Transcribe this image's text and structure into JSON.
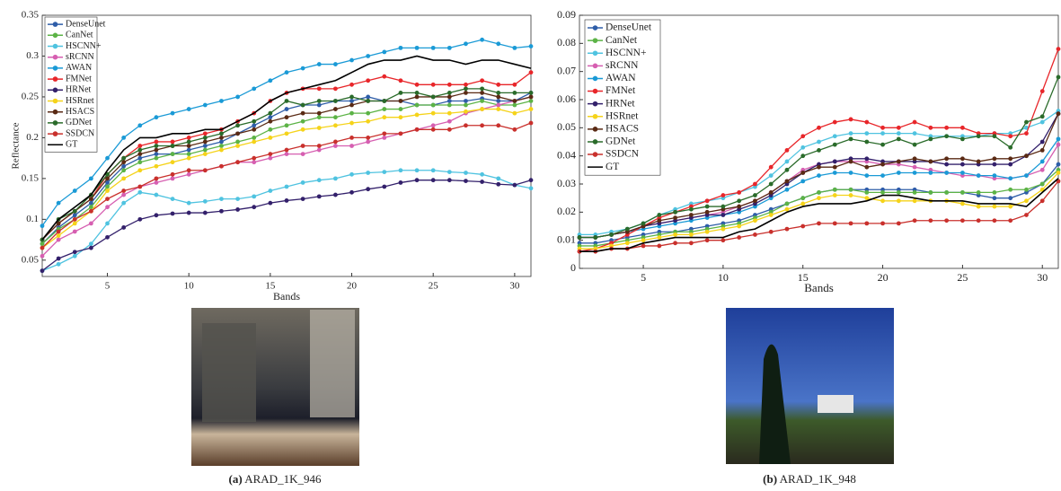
{
  "chart_data": [
    {
      "type": "line",
      "ylabel": "Reflectance",
      "xlabel": "Bands",
      "label": "(a)",
      "caption": "ARAD_1K_946",
      "x": [
        1,
        2,
        3,
        4,
        5,
        6,
        7,
        8,
        9,
        10,
        11,
        12,
        13,
        14,
        15,
        16,
        17,
        18,
        19,
        20,
        21,
        22,
        23,
        24,
        25,
        26,
        27,
        28,
        29,
        30,
        31
      ],
      "xlim": [
        1,
        31
      ],
      "xticks": [
        5,
        10,
        15,
        20,
        25,
        30
      ],
      "ylim": [
        0.03,
        0.35
      ],
      "yticks": [
        0.05,
        0.1,
        0.15,
        0.2,
        0.25,
        0.3,
        0.35
      ],
      "legend": "upper left",
      "series": [
        {
          "name": "DenseUnet",
          "color": "#2e5da8",
          "values": [
            0.07,
            0.09,
            0.105,
            0.12,
            0.145,
            0.165,
            0.175,
            0.18,
            0.18,
            0.185,
            0.19,
            0.195,
            0.205,
            0.215,
            0.225,
            0.235,
            0.24,
            0.24,
            0.245,
            0.245,
            0.25,
            0.245,
            0.245,
            0.24,
            0.24,
            0.245,
            0.245,
            0.248,
            0.245,
            0.245,
            0.255
          ]
        },
        {
          "name": "CanNet",
          "color": "#5cb346",
          "values": [
            0.07,
            0.088,
            0.1,
            0.115,
            0.14,
            0.16,
            0.17,
            0.175,
            0.18,
            0.18,
            0.185,
            0.19,
            0.195,
            0.2,
            0.21,
            0.215,
            0.22,
            0.225,
            0.225,
            0.23,
            0.23,
            0.235,
            0.235,
            0.24,
            0.24,
            0.24,
            0.24,
            0.245,
            0.24,
            0.24,
            0.245
          ]
        },
        {
          "name": "HSCNN+",
          "color": "#4fc3e0",
          "values": [
            0.037,
            0.045,
            0.055,
            0.07,
            0.095,
            0.12,
            0.133,
            0.13,
            0.125,
            0.12,
            0.122,
            0.125,
            0.125,
            0.128,
            0.135,
            0.14,
            0.145,
            0.148,
            0.15,
            0.155,
            0.157,
            0.158,
            0.16,
            0.16,
            0.16,
            0.158,
            0.157,
            0.155,
            0.15,
            0.142,
            0.138
          ]
        },
        {
          "name": "sRCNN",
          "color": "#d65fb1",
          "values": [
            0.055,
            0.075,
            0.085,
            0.095,
            0.115,
            0.13,
            0.14,
            0.145,
            0.15,
            0.155,
            0.16,
            0.165,
            0.17,
            0.17,
            0.175,
            0.18,
            0.18,
            0.185,
            0.19,
            0.19,
            0.195,
            0.2,
            0.205,
            0.21,
            0.215,
            0.22,
            0.23,
            0.235,
            0.24,
            0.245,
            0.25
          ]
        },
        {
          "name": "AWAN",
          "color": "#1a9ad6",
          "values": [
            0.092,
            0.12,
            0.135,
            0.15,
            0.175,
            0.2,
            0.215,
            0.225,
            0.23,
            0.235,
            0.24,
            0.245,
            0.25,
            0.26,
            0.27,
            0.28,
            0.285,
            0.29,
            0.29,
            0.295,
            0.3,
            0.305,
            0.31,
            0.31,
            0.31,
            0.31,
            0.315,
            0.32,
            0.315,
            0.31,
            0.312
          ]
        },
        {
          "name": "FMNet",
          "color": "#e8262a",
          "values": [
            0.075,
            0.095,
            0.11,
            0.125,
            0.155,
            0.175,
            0.19,
            0.195,
            0.195,
            0.2,
            0.205,
            0.21,
            0.22,
            0.23,
            0.245,
            0.255,
            0.26,
            0.26,
            0.26,
            0.265,
            0.27,
            0.275,
            0.27,
            0.265,
            0.265,
            0.265,
            0.265,
            0.27,
            0.265,
            0.265,
            0.28
          ]
        },
        {
          "name": "HRNet",
          "color": "#33206b",
          "values": [
            0.037,
            0.052,
            0.06,
            0.065,
            0.078,
            0.09,
            0.1,
            0.105,
            0.107,
            0.108,
            0.108,
            0.11,
            0.112,
            0.115,
            0.12,
            0.123,
            0.125,
            0.128,
            0.13,
            0.133,
            0.137,
            0.14,
            0.145,
            0.148,
            0.148,
            0.148,
            0.147,
            0.146,
            0.143,
            0.142,
            0.148
          ]
        },
        {
          "name": "HSRnet",
          "color": "#f5d31a",
          "values": [
            0.065,
            0.08,
            0.095,
            0.11,
            0.135,
            0.15,
            0.16,
            0.165,
            0.17,
            0.175,
            0.18,
            0.185,
            0.19,
            0.195,
            0.2,
            0.205,
            0.21,
            0.212,
            0.215,
            0.218,
            0.22,
            0.225,
            0.225,
            0.228,
            0.23,
            0.23,
            0.232,
            0.235,
            0.235,
            0.23,
            0.235
          ]
        },
        {
          "name": "HSACS",
          "color": "#5a2a14",
          "values": [
            0.075,
            0.095,
            0.11,
            0.125,
            0.15,
            0.17,
            0.18,
            0.185,
            0.19,
            0.19,
            0.195,
            0.2,
            0.205,
            0.21,
            0.22,
            0.225,
            0.23,
            0.23,
            0.235,
            0.24,
            0.245,
            0.245,
            0.245,
            0.25,
            0.25,
            0.25,
            0.255,
            0.255,
            0.25,
            0.245,
            0.25
          ]
        },
        {
          "name": "GDNet",
          "color": "#2a6b2a",
          "values": [
            0.075,
            0.1,
            0.11,
            0.13,
            0.155,
            0.175,
            0.185,
            0.19,
            0.19,
            0.195,
            0.2,
            0.205,
            0.215,
            0.22,
            0.23,
            0.245,
            0.24,
            0.245,
            0.245,
            0.25,
            0.245,
            0.245,
            0.255,
            0.255,
            0.25,
            0.255,
            0.26,
            0.26,
            0.255,
            0.255,
            0.255
          ]
        },
        {
          "name": "SSDCN",
          "color": "#c9302c",
          "values": [
            0.065,
            0.085,
            0.1,
            0.11,
            0.125,
            0.135,
            0.14,
            0.15,
            0.155,
            0.16,
            0.16,
            0.165,
            0.17,
            0.175,
            0.18,
            0.185,
            0.19,
            0.19,
            0.195,
            0.2,
            0.2,
            0.205,
            0.205,
            0.21,
            0.21,
            0.21,
            0.215,
            0.215,
            0.215,
            0.21,
            0.218
          ]
        },
        {
          "name": "GT",
          "color": "#000000",
          "values": [
            0.075,
            0.1,
            0.115,
            0.13,
            0.16,
            0.185,
            0.2,
            0.2,
            0.205,
            0.205,
            0.21,
            0.21,
            0.22,
            0.23,
            0.245,
            0.255,
            0.26,
            0.265,
            0.27,
            0.28,
            0.29,
            0.295,
            0.295,
            0.3,
            0.295,
            0.295,
            0.29,
            0.295,
            0.295,
            0.29,
            0.285
          ]
        }
      ]
    },
    {
      "type": "line",
      "xlabel": "Bands",
      "label": "(b)",
      "caption": "ARAD_1K_948",
      "x": [
        1,
        2,
        3,
        4,
        5,
        6,
        7,
        8,
        9,
        10,
        11,
        12,
        13,
        14,
        15,
        16,
        17,
        18,
        19,
        20,
        21,
        22,
        23,
        24,
        25,
        26,
        27,
        28,
        29,
        30,
        31
      ],
      "xlim": [
        1,
        31
      ],
      "xticks": [
        5,
        10,
        15,
        20,
        25,
        30
      ],
      "ylim": [
        0,
        0.09
      ],
      "yticks": [
        0,
        0.01,
        0.02,
        0.03,
        0.04,
        0.05,
        0.06,
        0.07,
        0.08,
        0.09
      ],
      "legend": "upper left",
      "series": [
        {
          "name": "DenseUnet",
          "color": "#2e5da8",
          "values": [
            0.009,
            0.009,
            0.01,
            0.011,
            0.012,
            0.013,
            0.013,
            0.014,
            0.015,
            0.016,
            0.017,
            0.019,
            0.021,
            0.023,
            0.025,
            0.027,
            0.028,
            0.028,
            0.028,
            0.028,
            0.028,
            0.028,
            0.027,
            0.027,
            0.027,
            0.026,
            0.025,
            0.025,
            0.027,
            0.03,
            0.037
          ]
        },
        {
          "name": "CanNet",
          "color": "#5cb346",
          "values": [
            0.008,
            0.008,
            0.009,
            0.01,
            0.011,
            0.012,
            0.013,
            0.013,
            0.014,
            0.015,
            0.016,
            0.018,
            0.02,
            0.023,
            0.025,
            0.027,
            0.028,
            0.028,
            0.027,
            0.027,
            0.027,
            0.027,
            0.027,
            0.027,
            0.027,
            0.027,
            0.027,
            0.028,
            0.028,
            0.03,
            0.035
          ]
        },
        {
          "name": "HSCNN+",
          "color": "#4fc3e0",
          "values": [
            0.012,
            0.012,
            0.013,
            0.014,
            0.016,
            0.019,
            0.021,
            0.023,
            0.024,
            0.025,
            0.027,
            0.029,
            0.033,
            0.038,
            0.043,
            0.045,
            0.047,
            0.048,
            0.048,
            0.048,
            0.048,
            0.048,
            0.047,
            0.047,
            0.047,
            0.047,
            0.048,
            0.048,
            0.05,
            0.052,
            0.056
          ]
        },
        {
          "name": "sRCNN",
          "color": "#d65fb1",
          "values": [
            0.011,
            0.011,
            0.012,
            0.013,
            0.015,
            0.016,
            0.017,
            0.018,
            0.019,
            0.02,
            0.022,
            0.024,
            0.027,
            0.031,
            0.035,
            0.037,
            0.038,
            0.038,
            0.038,
            0.037,
            0.037,
            0.036,
            0.035,
            0.034,
            0.033,
            0.033,
            0.032,
            0.032,
            0.033,
            0.035,
            0.044
          ]
        },
        {
          "name": "AWAN",
          "color": "#1a9ad6",
          "values": [
            0.011,
            0.011,
            0.012,
            0.013,
            0.014,
            0.015,
            0.016,
            0.017,
            0.018,
            0.019,
            0.02,
            0.022,
            0.025,
            0.028,
            0.031,
            0.033,
            0.034,
            0.034,
            0.033,
            0.033,
            0.034,
            0.034,
            0.034,
            0.034,
            0.034,
            0.033,
            0.033,
            0.032,
            0.033,
            0.038,
            0.046
          ]
        },
        {
          "name": "FMNet",
          "color": "#e8262a",
          "values": [
            0.006,
            0.007,
            0.009,
            0.012,
            0.015,
            0.018,
            0.02,
            0.022,
            0.024,
            0.026,
            0.027,
            0.03,
            0.036,
            0.042,
            0.047,
            0.05,
            0.052,
            0.053,
            0.052,
            0.05,
            0.05,
            0.052,
            0.05,
            0.05,
            0.05,
            0.048,
            0.048,
            0.047,
            0.048,
            0.063,
            0.078
          ]
        },
        {
          "name": "HRNet",
          "color": "#33206b",
          "values": [
            0.011,
            0.011,
            0.012,
            0.013,
            0.015,
            0.016,
            0.017,
            0.018,
            0.019,
            0.019,
            0.021,
            0.023,
            0.026,
            0.03,
            0.034,
            0.037,
            0.038,
            0.039,
            0.039,
            0.038,
            0.038,
            0.038,
            0.038,
            0.037,
            0.037,
            0.037,
            0.037,
            0.037,
            0.04,
            0.045,
            0.055
          ]
        },
        {
          "name": "HSRnet",
          "color": "#f5d31a",
          "values": [
            0.007,
            0.007,
            0.008,
            0.009,
            0.01,
            0.011,
            0.012,
            0.012,
            0.013,
            0.014,
            0.015,
            0.017,
            0.019,
            0.021,
            0.023,
            0.025,
            0.026,
            0.026,
            0.025,
            0.024,
            0.024,
            0.024,
            0.024,
            0.024,
            0.023,
            0.022,
            0.022,
            0.022,
            0.024,
            0.028,
            0.034
          ]
        },
        {
          "name": "HSACS",
          "color": "#5a2a14",
          "values": [
            0.011,
            0.011,
            0.012,
            0.013,
            0.015,
            0.017,
            0.018,
            0.019,
            0.02,
            0.021,
            0.022,
            0.024,
            0.027,
            0.031,
            0.034,
            0.036,
            0.036,
            0.038,
            0.036,
            0.037,
            0.038,
            0.039,
            0.038,
            0.039,
            0.039,
            0.038,
            0.039,
            0.039,
            0.04,
            0.042,
            0.055
          ]
        },
        {
          "name": "GDNet",
          "color": "#2a6b2a",
          "values": [
            0.011,
            0.011,
            0.012,
            0.014,
            0.016,
            0.019,
            0.02,
            0.021,
            0.022,
            0.022,
            0.024,
            0.026,
            0.03,
            0.035,
            0.04,
            0.042,
            0.044,
            0.046,
            0.045,
            0.044,
            0.046,
            0.044,
            0.046,
            0.047,
            0.046,
            0.047,
            0.047,
            0.043,
            0.052,
            0.054,
            0.068
          ]
        },
        {
          "name": "SSDCN",
          "color": "#c9302c",
          "values": [
            0.006,
            0.006,
            0.007,
            0.007,
            0.008,
            0.008,
            0.009,
            0.009,
            0.01,
            0.01,
            0.011,
            0.012,
            0.013,
            0.014,
            0.015,
            0.016,
            0.016,
            0.016,
            0.016,
            0.016,
            0.016,
            0.017,
            0.017,
            0.017,
            0.017,
            0.017,
            0.017,
            0.017,
            0.019,
            0.024,
            0.031
          ]
        },
        {
          "name": "GT",
          "color": "#000000",
          "values": [
            0.006,
            0.006,
            0.007,
            0.007,
            0.009,
            0.01,
            0.011,
            0.011,
            0.011,
            0.011,
            0.013,
            0.014,
            0.017,
            0.02,
            0.022,
            0.023,
            0.023,
            0.023,
            0.024,
            0.026,
            0.026,
            0.025,
            0.024,
            0.024,
            0.024,
            0.023,
            0.023,
            0.023,
            0.022,
            0.027,
            0.032
          ]
        }
      ]
    }
  ]
}
